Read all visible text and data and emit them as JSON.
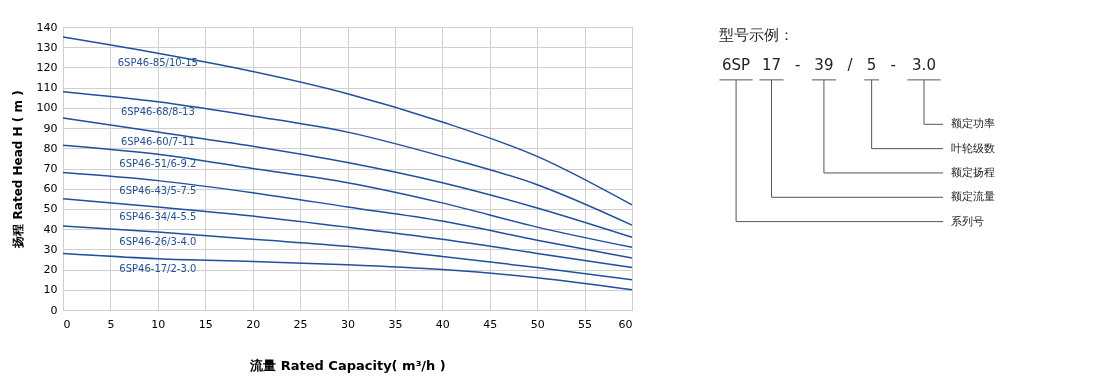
{
  "chart_data": [
    {
      "type": "line",
      "xlabel": "流量 Rated Capacity( m³/h )",
      "ylabel": "扬程 Rated Head H ( m )",
      "x": [
        0,
        10,
        20,
        30,
        40,
        50,
        60
      ],
      "xlim": [
        0,
        60
      ],
      "xticks": [
        0,
        5,
        10,
        15,
        20,
        25,
        30,
        35,
        40,
        45,
        50,
        55,
        60
      ],
      "ylim": [
        0,
        140
      ],
      "yticks": [
        0,
        10,
        20,
        30,
        40,
        50,
        60,
        70,
        80,
        90,
        100,
        110,
        120,
        130,
        140
      ],
      "grid": true,
      "legend": false,
      "marker": "none",
      "line_style": "solid",
      "series": [
        {
          "name": "6SP46-85/10-15",
          "color": "#1f4f9e",
          "values": [
            135,
            127,
            118,
            107,
            93,
            76,
            52
          ]
        },
        {
          "name": "6SP46-68/8-13",
          "color": "#1f4f9e",
          "values": [
            108,
            103,
            96,
            88,
            76,
            62,
            42
          ]
        },
        {
          "name": "6SP46-60/7-11",
          "color": "#1f4f9e",
          "values": [
            95,
            88,
            81,
            73,
            63,
            50.5,
            36
          ]
        },
        {
          "name": "6SP46-51/6-9.2",
          "color": "#1f4f9e",
          "values": [
            81.5,
            77,
            70,
            63,
            53,
            41,
            31
          ]
        },
        {
          "name": "6SP46-43/5-7.5",
          "color": "#1f4f9e",
          "values": [
            68,
            64,
            58,
            51,
            44,
            34.5,
            25.7
          ]
        },
        {
          "name": "6SP46-34/4-5.5",
          "color": "#1f4f9e",
          "values": [
            55,
            51,
            46.5,
            41,
            35,
            28,
            21
          ]
        },
        {
          "name": "6SP46-26/3-4.0",
          "color": "#1f4f9e",
          "values": [
            41.5,
            38.6,
            35,
            31.5,
            26.5,
            21,
            15
          ]
        },
        {
          "name": "6SP46-17/2-3.0",
          "color": "#1f4f9e",
          "values": [
            28,
            25.4,
            24,
            22.4,
            20,
            16,
            10
          ]
        }
      ]
    },
    {
      "type": "other",
      "title": "型号示例：",
      "categories": [
        "6SP",
        "17",
        "-",
        "39",
        "/",
        "5",
        "-",
        "3.0"
      ],
      "annotations": [
        "额定功率",
        "叶轮级数",
        "额定扬程",
        "额定流量",
        "系列号"
      ]
    }
  ]
}
